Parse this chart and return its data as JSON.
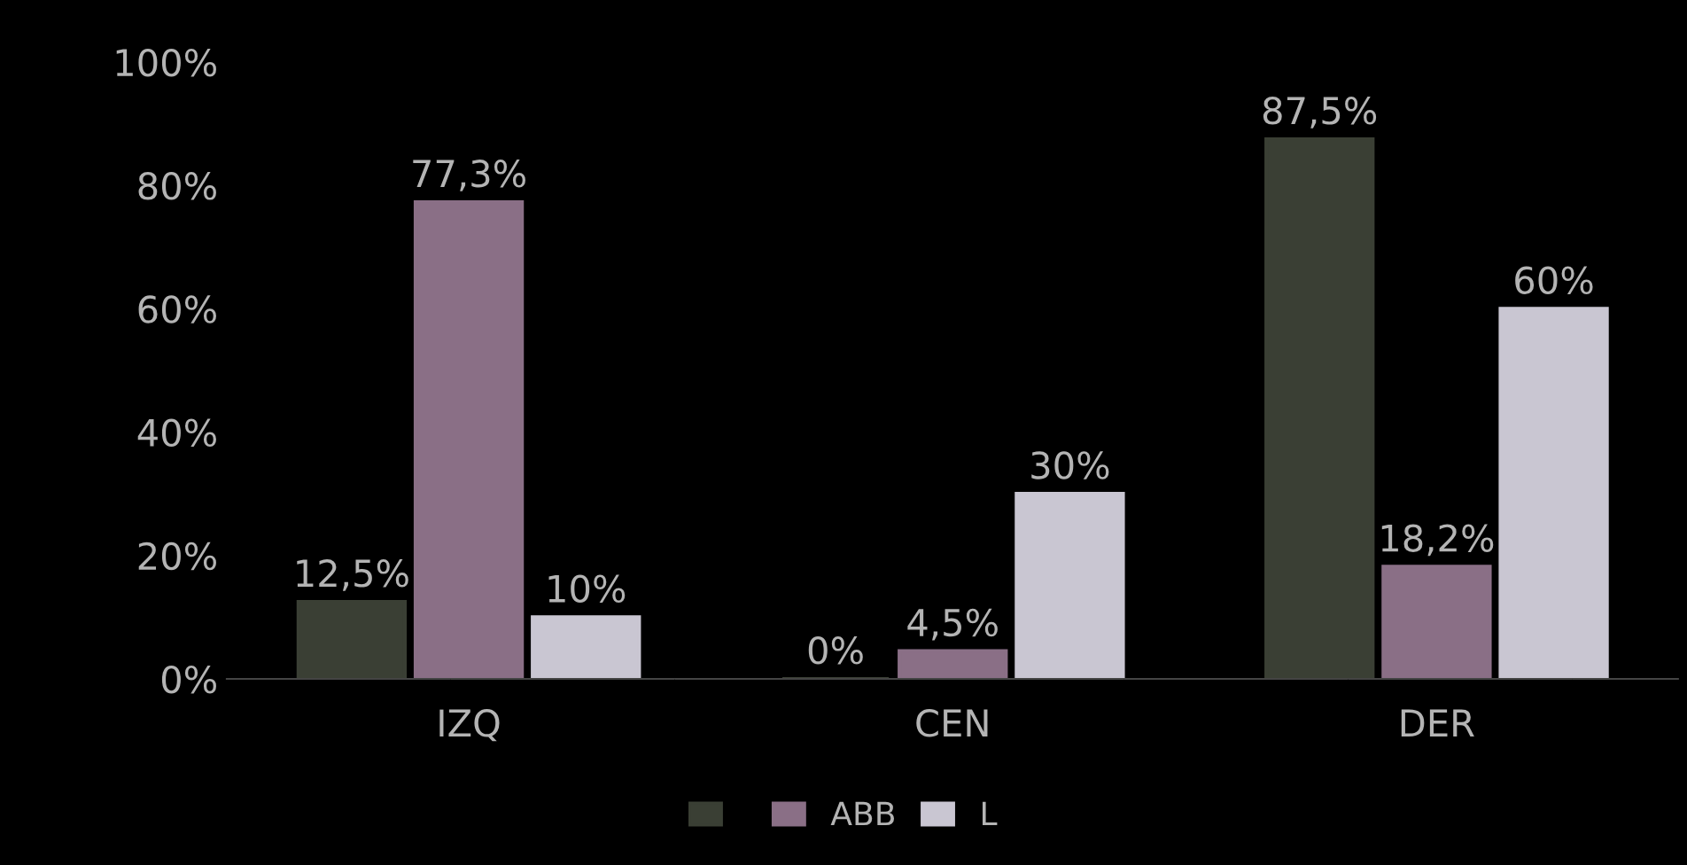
{
  "chart_data": {
    "type": "bar",
    "categories": [
      "IZQ",
      "CEN",
      "DER"
    ],
    "series": [
      {
        "color": "#3a3f34",
        "values": [
          12.5,
          0,
          87.5
        ],
        "value_labels": [
          "12,5%",
          "0%",
          "87,5%"
        ]
      },
      {
        "name": "ABB",
        "color": "#8a6f86",
        "values": [
          77.3,
          4.5,
          18.2
        ],
        "value_labels": [
          "77,3%",
          "4,5%",
          "18,2%"
        ]
      },
      {
        "name": "L",
        "color": "#c9c6d2",
        "values": [
          10,
          30,
          60
        ],
        "value_labels": [
          "10%",
          "30%",
          "60%"
        ]
      }
    ],
    "ylim": [
      0,
      100
    ],
    "yticks": [
      {
        "value": 0,
        "label": "0%"
      },
      {
        "value": 20,
        "label": "20%"
      },
      {
        "value": 40,
        "label": "40%"
      },
      {
        "value": 60,
        "label": "60%"
      },
      {
        "value": 80,
        "label": "80%"
      },
      {
        "value": 100,
        "label": "100%"
      }
    ],
    "grid": false,
    "legend": "bottom"
  }
}
